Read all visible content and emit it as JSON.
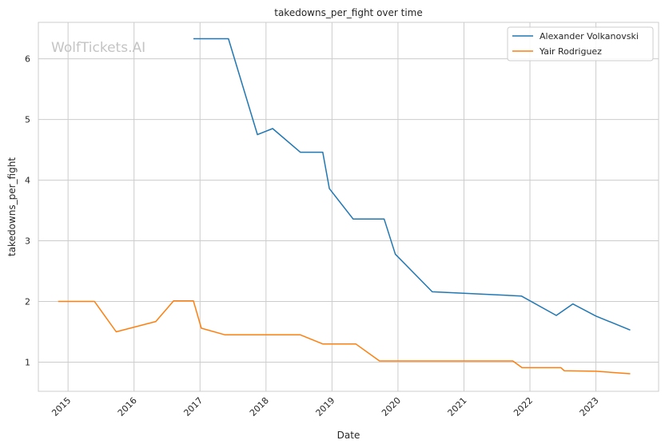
{
  "chart_data": {
    "type": "line",
    "title": "takedowns_per_fight over time",
    "xlabel": "Date",
    "ylabel": "takedowns_per_fight",
    "watermark": "WolfTickets.AI",
    "xlim": [
      2014.55,
      2023.95
    ],
    "ylim": [
      0.52,
      6.6
    ],
    "x_ticks": [
      2015,
      2016,
      2017,
      2018,
      2019,
      2020,
      2021,
      2022,
      2023
    ],
    "x_tick_labels": [
      "2015",
      "2016",
      "2017",
      "2018",
      "2019",
      "2020",
      "2021",
      "2022",
      "2023"
    ],
    "y_ticks": [
      1,
      2,
      3,
      4,
      5,
      6
    ],
    "y_tick_labels": [
      "1",
      "2",
      "3",
      "4",
      "5",
      "6"
    ],
    "grid": true,
    "legend_position": "top-right",
    "series": [
      {
        "name": "Alexander Volkanovski",
        "color": "#1f77b4",
        "x": [
          2016.9,
          2017.43,
          2017.87,
          2018.1,
          2018.52,
          2018.86,
          2018.96,
          2019.32,
          2019.79,
          2019.96,
          2020.52,
          2021.87,
          2022.4,
          2022.65,
          2023.0,
          2023.52
        ],
        "y": [
          6.33,
          6.33,
          4.75,
          4.85,
          4.46,
          4.46,
          3.86,
          3.36,
          3.36,
          2.78,
          2.16,
          2.09,
          1.77,
          1.96,
          1.76,
          1.53
        ]
      },
      {
        "name": "Yair Rodriguez",
        "color": "#ff7f0e",
        "x": [
          2014.85,
          2015.4,
          2015.73,
          2016.33,
          2016.6,
          2016.9,
          2017.02,
          2017.38,
          2018.52,
          2018.86,
          2019.36,
          2019.72,
          2021.74,
          2021.88,
          2022.47,
          2022.52,
          2023.0,
          2023.52
        ],
        "y": [
          2.0,
          2.0,
          1.5,
          1.67,
          2.01,
          2.01,
          1.56,
          1.45,
          1.45,
          1.3,
          1.3,
          1.02,
          1.02,
          0.91,
          0.91,
          0.86,
          0.85,
          0.81
        ]
      }
    ]
  }
}
